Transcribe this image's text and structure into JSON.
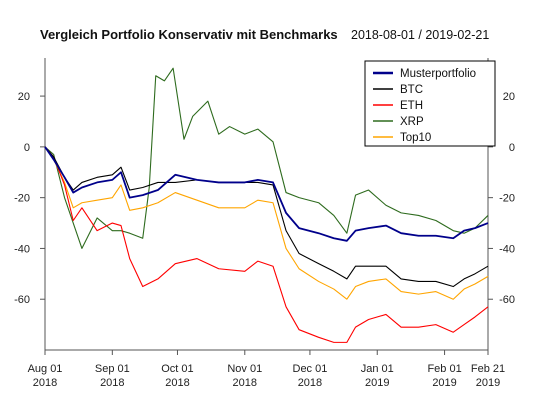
{
  "chart_data": {
    "type": "line",
    "title": "Vergleich Portfolio Konservativ mit Benchmarks",
    "date_range": "2018-08-01 / 2019-02-21",
    "xlabel": "",
    "ylabel": "",
    "ylim": [
      -80,
      35
    ],
    "y_ticks": [
      20,
      0,
      -20,
      -40,
      -60
    ],
    "x_ticks": [
      {
        "date": "2018-08-01",
        "month": "Aug 01",
        "year": "2018"
      },
      {
        "date": "2018-09-01",
        "month": "Sep 01",
        "year": "2018"
      },
      {
        "date": "2018-10-01",
        "month": "Oct 01",
        "year": "2018"
      },
      {
        "date": "2018-11-01",
        "month": "Nov 01",
        "year": "2018"
      },
      {
        "date": "2018-12-01",
        "month": "Dec 01",
        "year": "2018"
      },
      {
        "date": "2019-01-01",
        "month": "Jan 01",
        "year": "2019"
      },
      {
        "date": "2019-02-01",
        "month": "Feb 01",
        "year": "2019"
      },
      {
        "date": "2019-02-21",
        "month": "Feb 21",
        "year": "2019"
      }
    ],
    "grid": false,
    "legend_position": "top-right",
    "series": [
      {
        "name": "Musterportfolio",
        "color": "#00008B",
        "points": [
          [
            "2018-08-01",
            0
          ],
          [
            "2018-08-05",
            -5
          ],
          [
            "2018-08-10",
            -12
          ],
          [
            "2018-08-14",
            -18
          ],
          [
            "2018-08-18",
            -16
          ],
          [
            "2018-08-25",
            -14
          ],
          [
            "2018-09-01",
            -13
          ],
          [
            "2018-09-05",
            -10
          ],
          [
            "2018-09-09",
            -20
          ],
          [
            "2018-09-15",
            -19
          ],
          [
            "2018-09-22",
            -17
          ],
          [
            "2018-09-30",
            -11
          ],
          [
            "2018-10-10",
            -13
          ],
          [
            "2018-10-20",
            -14
          ],
          [
            "2018-11-01",
            -14
          ],
          [
            "2018-11-07",
            -13
          ],
          [
            "2018-11-14",
            -14
          ],
          [
            "2018-11-20",
            -26
          ],
          [
            "2018-11-26",
            -32
          ],
          [
            "2018-12-05",
            -34
          ],
          [
            "2018-12-12",
            -36
          ],
          [
            "2018-12-18",
            -37
          ],
          [
            "2018-12-22",
            -33
          ],
          [
            "2018-12-28",
            -32
          ],
          [
            "2019-01-05",
            -31
          ],
          [
            "2019-01-12",
            -34
          ],
          [
            "2019-01-20",
            -35
          ],
          [
            "2019-01-28",
            -35
          ],
          [
            "2019-02-05",
            -36
          ],
          [
            "2019-02-10",
            -33
          ],
          [
            "2019-02-15",
            -32
          ],
          [
            "2019-02-21",
            -30
          ]
        ]
      },
      {
        "name": "BTC",
        "color": "#000000",
        "points": [
          [
            "2018-08-01",
            0
          ],
          [
            "2018-08-05",
            -4
          ],
          [
            "2018-08-10",
            -12
          ],
          [
            "2018-08-14",
            -17
          ],
          [
            "2018-08-18",
            -14
          ],
          [
            "2018-08-25",
            -12
          ],
          [
            "2018-09-01",
            -11
          ],
          [
            "2018-09-05",
            -8
          ],
          [
            "2018-09-09",
            -17
          ],
          [
            "2018-09-15",
            -16
          ],
          [
            "2018-09-22",
            -14
          ],
          [
            "2018-09-30",
            -14
          ],
          [
            "2018-10-10",
            -13
          ],
          [
            "2018-10-20",
            -14
          ],
          [
            "2018-11-01",
            -14
          ],
          [
            "2018-11-07",
            -14
          ],
          [
            "2018-11-14",
            -15
          ],
          [
            "2018-11-20",
            -33
          ],
          [
            "2018-11-26",
            -42
          ],
          [
            "2018-12-05",
            -46
          ],
          [
            "2018-12-12",
            -49
          ],
          [
            "2018-12-18",
            -52
          ],
          [
            "2018-12-22",
            -47
          ],
          [
            "2018-12-28",
            -47
          ],
          [
            "2019-01-05",
            -47
          ],
          [
            "2019-01-12",
            -52
          ],
          [
            "2019-01-20",
            -53
          ],
          [
            "2019-01-28",
            -53
          ],
          [
            "2019-02-05",
            -55
          ],
          [
            "2019-02-10",
            -52
          ],
          [
            "2019-02-15",
            -50
          ],
          [
            "2019-02-21",
            -47
          ]
        ]
      },
      {
        "name": "ETH",
        "color": "#FF0000",
        "points": [
          [
            "2018-08-01",
            0
          ],
          [
            "2018-08-05",
            -4
          ],
          [
            "2018-08-10",
            -15
          ],
          [
            "2018-08-14",
            -29
          ],
          [
            "2018-08-18",
            -24
          ],
          [
            "2018-08-25",
            -33
          ],
          [
            "2018-09-01",
            -30
          ],
          [
            "2018-09-05",
            -31
          ],
          [
            "2018-09-09",
            -44
          ],
          [
            "2018-09-15",
            -55
          ],
          [
            "2018-09-22",
            -52
          ],
          [
            "2018-09-30",
            -46
          ],
          [
            "2018-10-10",
            -44
          ],
          [
            "2018-10-20",
            -48
          ],
          [
            "2018-11-01",
            -49
          ],
          [
            "2018-11-07",
            -45
          ],
          [
            "2018-11-14",
            -47
          ],
          [
            "2018-11-20",
            -63
          ],
          [
            "2018-11-26",
            -72
          ],
          [
            "2018-12-05",
            -75
          ],
          [
            "2018-12-12",
            -77
          ],
          [
            "2018-12-18",
            -77
          ],
          [
            "2018-12-22",
            -71
          ],
          [
            "2018-12-28",
            -68
          ],
          [
            "2019-01-05",
            -66
          ],
          [
            "2019-01-12",
            -71
          ],
          [
            "2019-01-20",
            -71
          ],
          [
            "2019-01-28",
            -70
          ],
          [
            "2019-02-05",
            -73
          ],
          [
            "2019-02-10",
            -70
          ],
          [
            "2019-02-15",
            -67
          ],
          [
            "2019-02-21",
            -63
          ]
        ]
      },
      {
        "name": "XRP",
        "color": "#2E6B1E",
        "points": [
          [
            "2018-08-01",
            0
          ],
          [
            "2018-08-05",
            -3
          ],
          [
            "2018-08-10",
            -20
          ],
          [
            "2018-08-14",
            -30
          ],
          [
            "2018-08-18",
            -40
          ],
          [
            "2018-08-25",
            -28
          ],
          [
            "2018-09-01",
            -33
          ],
          [
            "2018-09-05",
            -33
          ],
          [
            "2018-09-09",
            -34
          ],
          [
            "2018-09-15",
            -36
          ],
          [
            "2018-09-18",
            -16
          ],
          [
            "2018-09-21",
            28
          ],
          [
            "2018-09-25",
            26
          ],
          [
            "2018-09-29",
            31
          ],
          [
            "2018-10-04",
            3
          ],
          [
            "2018-10-08",
            12
          ],
          [
            "2018-10-15",
            18
          ],
          [
            "2018-10-20",
            5
          ],
          [
            "2018-10-25",
            8
          ],
          [
            "2018-11-01",
            5
          ],
          [
            "2018-11-07",
            7
          ],
          [
            "2018-11-14",
            2
          ],
          [
            "2018-11-20",
            -18
          ],
          [
            "2018-11-26",
            -20
          ],
          [
            "2018-12-05",
            -22
          ],
          [
            "2018-12-12",
            -27
          ],
          [
            "2018-12-18",
            -34
          ],
          [
            "2018-12-22",
            -19
          ],
          [
            "2018-12-28",
            -17
          ],
          [
            "2019-01-05",
            -23
          ],
          [
            "2019-01-12",
            -26
          ],
          [
            "2019-01-20",
            -27
          ],
          [
            "2019-01-28",
            -29
          ],
          [
            "2019-02-05",
            -33
          ],
          [
            "2019-02-10",
            -34
          ],
          [
            "2019-02-15",
            -32
          ],
          [
            "2019-02-21",
            -27
          ]
        ]
      },
      {
        "name": "Top10",
        "color": "#FFA500",
        "points": [
          [
            "2018-08-01",
            0
          ],
          [
            "2018-08-05",
            -5
          ],
          [
            "2018-08-10",
            -14
          ],
          [
            "2018-08-14",
            -24
          ],
          [
            "2018-08-18",
            -22
          ],
          [
            "2018-08-25",
            -21
          ],
          [
            "2018-09-01",
            -20
          ],
          [
            "2018-09-05",
            -15
          ],
          [
            "2018-09-09",
            -25
          ],
          [
            "2018-09-15",
            -24
          ],
          [
            "2018-09-22",
            -22
          ],
          [
            "2018-09-30",
            -18
          ],
          [
            "2018-10-10",
            -21
          ],
          [
            "2018-10-20",
            -24
          ],
          [
            "2018-11-01",
            -24
          ],
          [
            "2018-11-07",
            -21
          ],
          [
            "2018-11-14",
            -22
          ],
          [
            "2018-11-20",
            -40
          ],
          [
            "2018-11-26",
            -48
          ],
          [
            "2018-12-05",
            -53
          ],
          [
            "2018-12-12",
            -56
          ],
          [
            "2018-12-18",
            -60
          ],
          [
            "2018-12-22",
            -55
          ],
          [
            "2018-12-28",
            -53
          ],
          [
            "2019-01-05",
            -52
          ],
          [
            "2019-01-12",
            -57
          ],
          [
            "2019-01-20",
            -58
          ],
          [
            "2019-01-28",
            -57
          ],
          [
            "2019-02-05",
            -60
          ],
          [
            "2019-02-10",
            -56
          ],
          [
            "2019-02-15",
            -54
          ],
          [
            "2019-02-21",
            -51
          ]
        ]
      }
    ]
  }
}
